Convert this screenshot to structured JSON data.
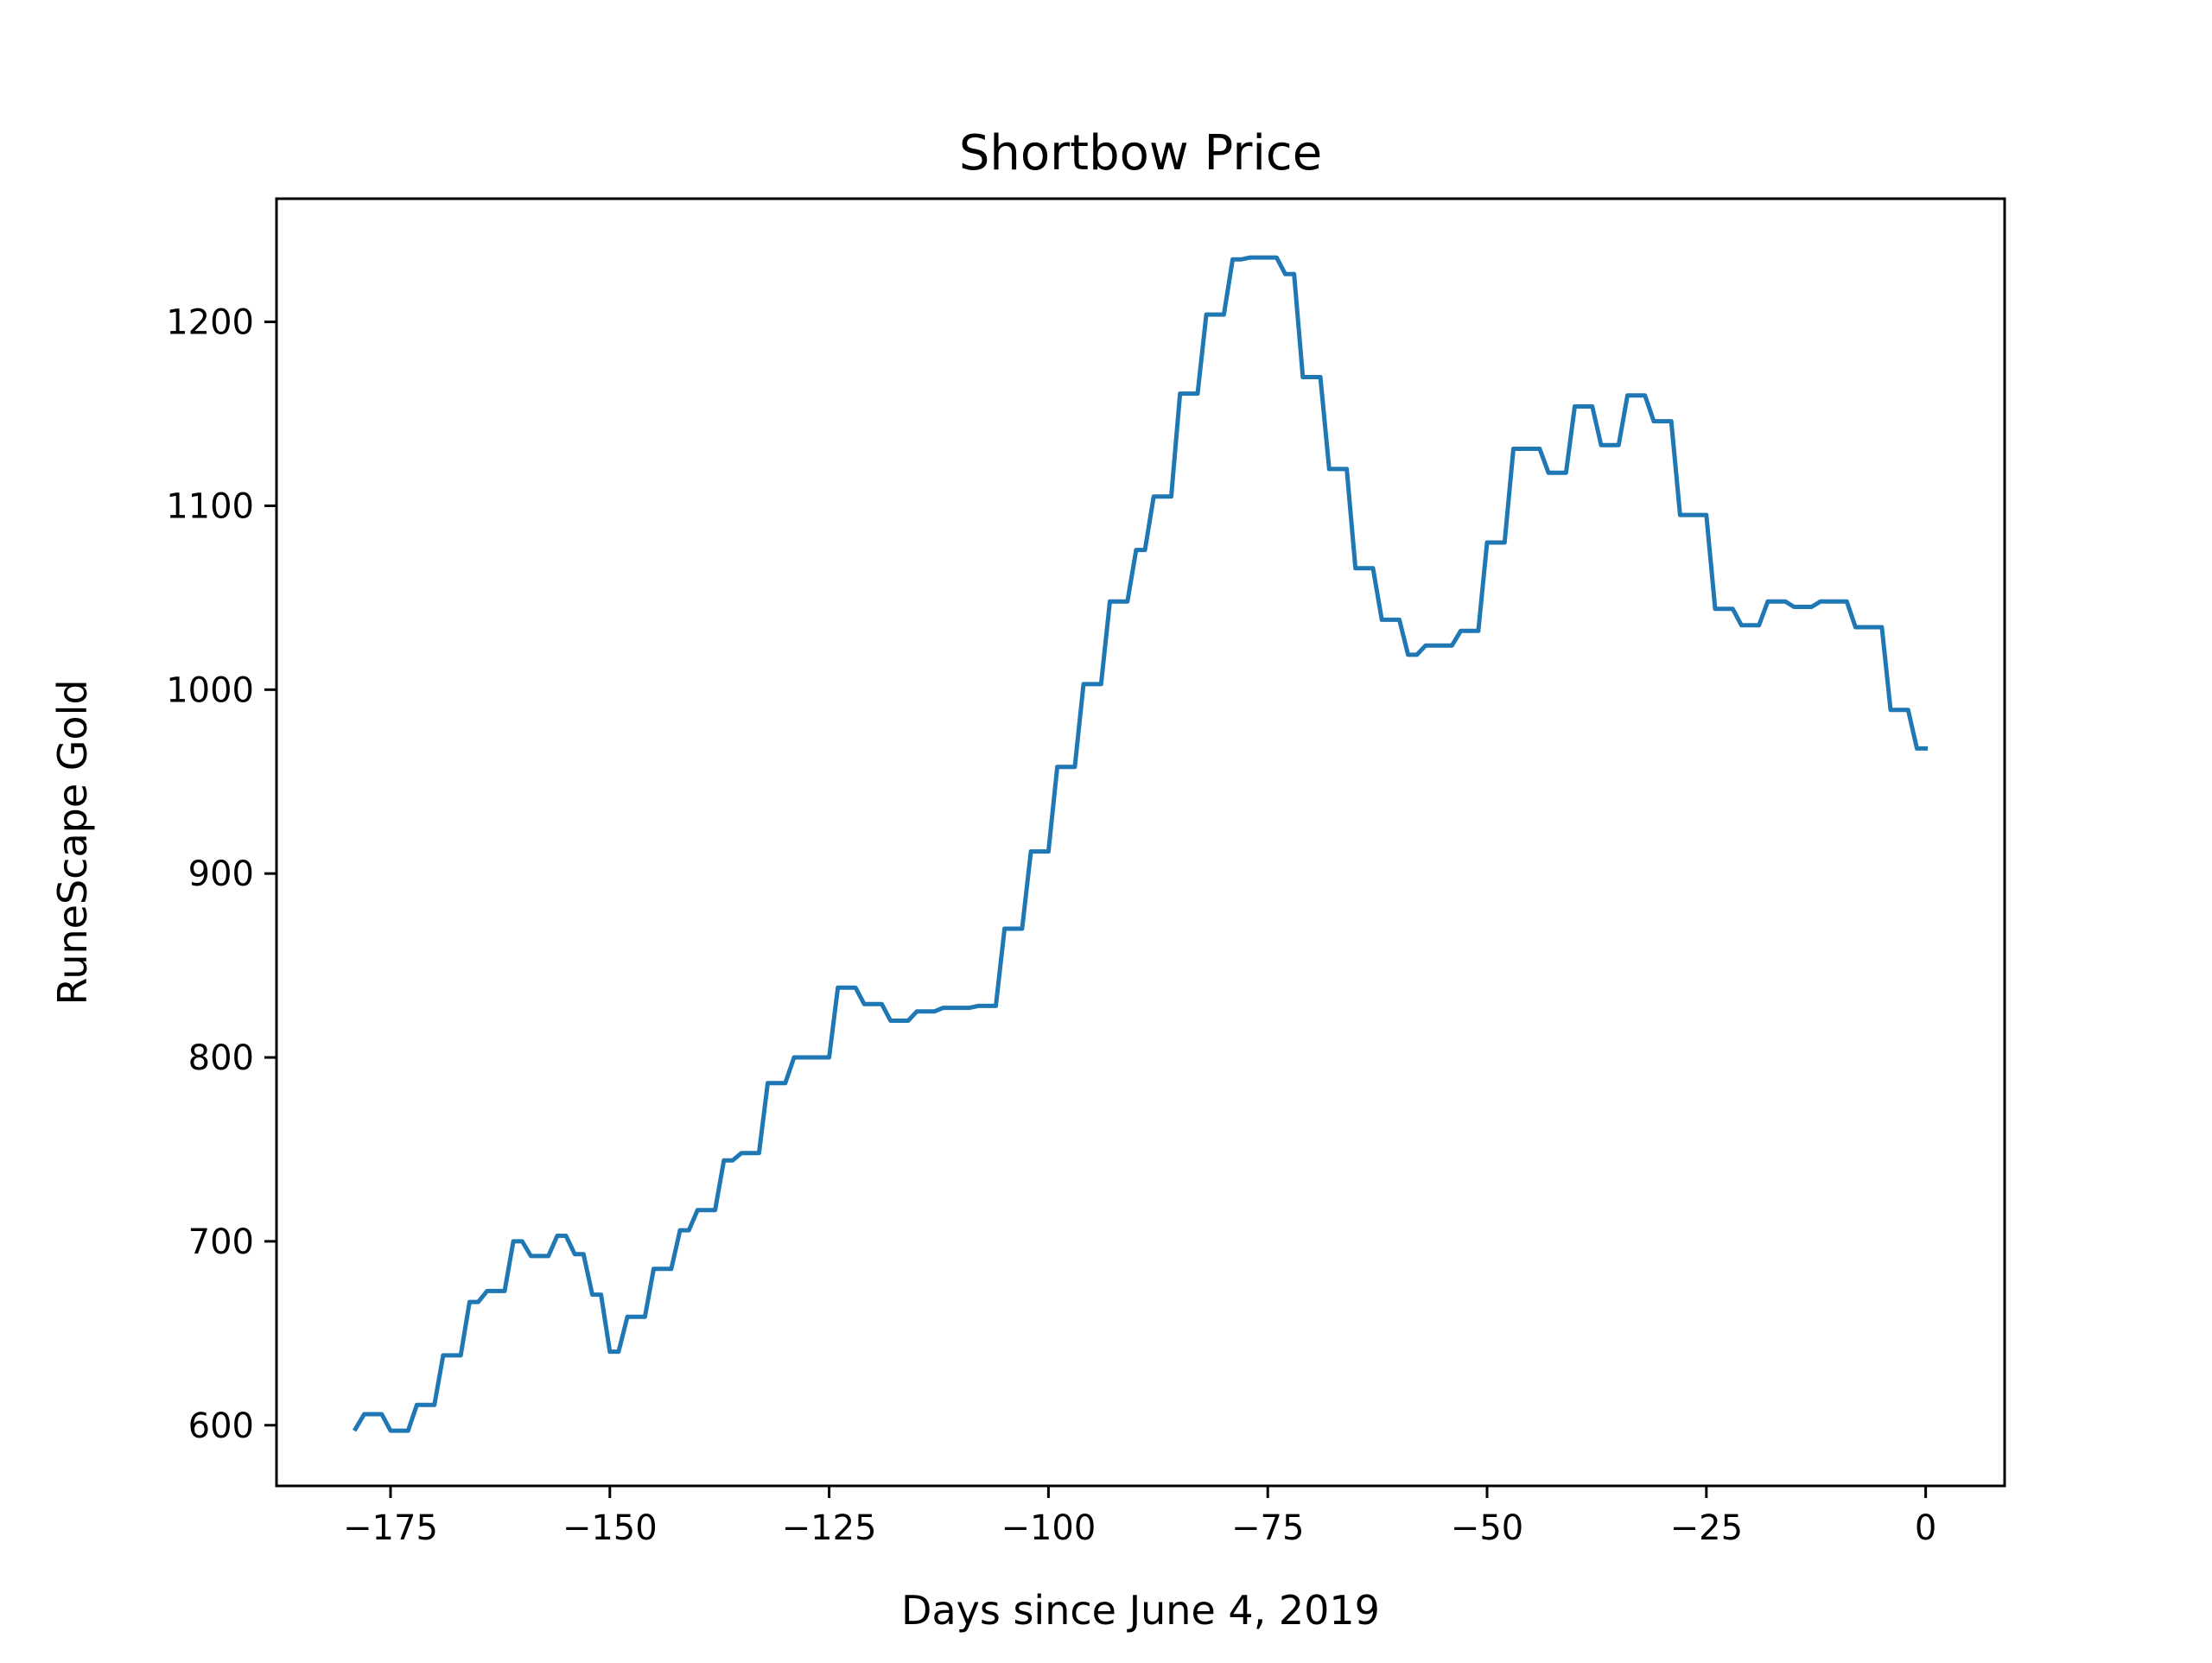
{
  "chart_data": {
    "type": "line",
    "title": "Shortbow Price",
    "xlabel": "Days since June 4, 2019",
    "ylabel": "RuneScape Gold",
    "xlim": [
      -188,
      9
    ],
    "ylim": [
      567,
      1267
    ],
    "xticks": [
      -175,
      -150,
      -125,
      -100,
      -75,
      -50,
      -25,
      0
    ],
    "xtick_labels": [
      "−175",
      "−150",
      "−125",
      "−100",
      "−75",
      "−50",
      "−25",
      "0"
    ],
    "yticks": [
      600,
      700,
      800,
      900,
      1000,
      1100,
      1200
    ],
    "ytick_labels": [
      "600",
      "700",
      "800",
      "900",
      "1000",
      "1100",
      "1200"
    ],
    "grid": false,
    "line_color": "#1f77b4",
    "series": [
      {
        "x": [
          -179,
          -178,
          -177,
          -176,
          -175,
          -174,
          -173,
          -172,
          -171,
          -170,
          -169,
          -168,
          -167,
          -166,
          -165,
          -164,
          -163,
          -162,
          -161,
          -160,
          -159,
          -158,
          -157,
          -156,
          -155,
          -154,
          -153,
          -152,
          -151,
          -150,
          -149,
          -148,
          -147,
          -146,
          -145,
          -144,
          -143,
          -142,
          -141,
          -140,
          -139,
          -138,
          -137,
          -136,
          -135,
          -134,
          -133,
          -132,
          -131,
          -130,
          -129,
          -128,
          -127,
          -126,
          -125,
          -124,
          -123,
          -122,
          -121,
          -120,
          -119,
          -118,
          -117,
          -116,
          -115,
          -114,
          -113,
          -112,
          -111,
          -110,
          -109,
          -108,
          -107,
          -106,
          -105,
          -104,
          -103,
          -102,
          -101,
          -100,
          -99,
          -98,
          -97,
          -96,
          -95,
          -94,
          -93,
          -92,
          -91,
          -90,
          -89,
          -88,
          -87,
          -86,
          -85,
          -84,
          -83,
          -82,
          -81,
          -80,
          -79,
          -78,
          -77,
          -76,
          -75,
          -74,
          -73,
          -72,
          -71,
          -70,
          -69,
          -68,
          -67,
          -66,
          -65,
          -64,
          -63,
          -62,
          -61,
          -60,
          -59,
          -58,
          -57,
          -56,
          -55,
          -54,
          -53,
          -52,
          -51,
          -50,
          -49,
          -48,
          -47,
          -46,
          -45,
          -44,
          -43,
          -42,
          -41,
          -40,
          -39,
          -38,
          -37,
          -36,
          -35,
          -34,
          -33,
          -32,
          -31,
          -30,
          -29,
          -28,
          -27,
          -26,
          -25,
          -24,
          -23,
          -22,
          -21,
          -20,
          -19,
          -18,
          -17,
          -16,
          -15,
          -14,
          -13,
          -12,
          -11,
          -10,
          -9,
          -8,
          -7,
          -6,
          -5,
          -4,
          -3,
          -2,
          -1,
          0
        ],
        "y": [
          598,
          606,
          606,
          606,
          597,
          597,
          597,
          611,
          611,
          611,
          638,
          638,
          638,
          667,
          667,
          673,
          673,
          673,
          700,
          700,
          692,
          692,
          692,
          703,
          703,
          693,
          693,
          671,
          671,
          640,
          640,
          659,
          659,
          659,
          685,
          685,
          685,
          706,
          706,
          717,
          717,
          717,
          744,
          744,
          748,
          748,
          748,
          786,
          786,
          786,
          800,
          800,
          800,
          800,
          800,
          838,
          838,
          838,
          829,
          829,
          829,
          820,
          820,
          820,
          825,
          825,
          825,
          827,
          827,
          827,
          827,
          828,
          828,
          828,
          870,
          870,
          870,
          912,
          912,
          912,
          958,
          958,
          958,
          1003,
          1003,
          1003,
          1048,
          1048,
          1048,
          1076,
          1076,
          1105,
          1105,
          1105,
          1161,
          1161,
          1161,
          1204,
          1204,
          1204,
          1234,
          1234,
          1235,
          1235,
          1235,
          1235,
          1226,
          1226,
          1170,
          1170,
          1170,
          1120,
          1120,
          1120,
          1066,
          1066,
          1066,
          1038,
          1038,
          1038,
          1019,
          1019,
          1024,
          1024,
          1024,
          1024,
          1032,
          1032,
          1032,
          1080,
          1080,
          1080,
          1131,
          1131,
          1131,
          1131,
          1118,
          1118,
          1118,
          1154,
          1154,
          1154,
          1133,
          1133,
          1133,
          1160,
          1160,
          1160,
          1146,
          1146,
          1146,
          1095,
          1095,
          1095,
          1095,
          1044,
          1044,
          1044,
          1035,
          1035,
          1035,
          1048,
          1048,
          1048,
          1045,
          1045,
          1045,
          1048,
          1048,
          1048,
          1048,
          1034,
          1034,
          1034,
          1034,
          989,
          989,
          989,
          968,
          968
        ]
      }
    ]
  }
}
